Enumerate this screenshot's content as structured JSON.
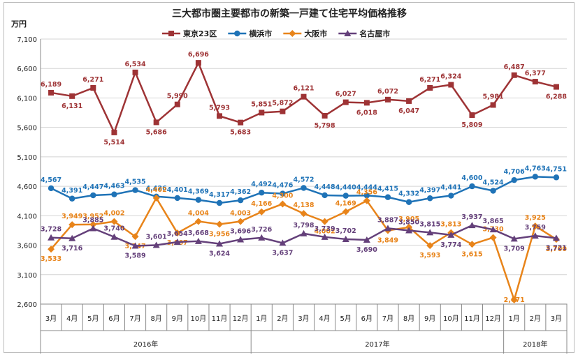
{
  "chart_data": {
    "type": "line",
    "title": "三大都市圏主要都市の新築一戸建て住宅平均価格推移",
    "ylabel": "万円",
    "ylim": [
      2600,
      7100
    ],
    "yticks": [
      2600,
      3100,
      3600,
      4100,
      4600,
      5100,
      5600,
      6100,
      6600,
      7100
    ],
    "ytick_labels": [
      "2,600",
      "3,100",
      "3,600",
      "4,100",
      "4,600",
      "5,100",
      "5,600",
      "6,100",
      "6,600",
      "7,100"
    ],
    "grid": true,
    "legend_position": "top",
    "categories": [
      "3月",
      "4月",
      "5月",
      "6月",
      "7月",
      "8月",
      "9月",
      "10月",
      "11月",
      "12月",
      "1月",
      "2月",
      "3月",
      "4月",
      "5月",
      "6月",
      "7月",
      "8月",
      "9月",
      "10月",
      "11月",
      "12月",
      "1月",
      "2月",
      "3月"
    ],
    "year_groups": [
      {
        "label": "2016年",
        "start": 0,
        "end": 9
      },
      {
        "label": "2017年",
        "start": 10,
        "end": 21
      },
      {
        "label": "2018年",
        "start": 22,
        "end": 24
      }
    ],
    "series": [
      {
        "name": "東京23区",
        "color": "#9e3335",
        "marker": "square",
        "label_pos": "alt",
        "values": [
          6189,
          6131,
          6271,
          5514,
          6534,
          5686,
          5990,
          6696,
          5793,
          5683,
          5851,
          5872,
          6121,
          5798,
          6027,
          6018,
          6072,
          6047,
          6271,
          6324,
          5809,
          5981,
          6487,
          6377,
          6288
        ],
        "labels": [
          "6,189",
          "6,131",
          "6,271",
          "5,514",
          "6,534",
          "5,686",
          "5,990",
          "6,696",
          "5,793",
          "5,683",
          "5,851",
          "5,872",
          "6,121",
          "5,798",
          "6,027",
          "6,018",
          "6,072",
          "6,047",
          "6,271",
          "6,324",
          "5,809",
          "5,981",
          "6,487",
          "6,377",
          "6,288"
        ]
      },
      {
        "name": "横浜市",
        "color": "#1f73b7",
        "marker": "circle",
        "label_pos": "above",
        "values": [
          4567,
          4391,
          4447,
          4463,
          4535,
          4426,
          4401,
          4369,
          4317,
          4362,
          4492,
          4476,
          4572,
          4448,
          4440,
          4444,
          4415,
          4332,
          4397,
          4441,
          4600,
          4524,
          4706,
          4763,
          4751
        ],
        "labels": [
          "4,567",
          "4,391",
          "4,447",
          "4,463",
          "4,535",
          "4,426",
          "4,401",
          "4,369",
          "4,317",
          "4,362",
          "4,492",
          "4,476",
          "4,572",
          "4,448",
          "4,440",
          "4,444",
          "4,415",
          "4,332",
          "4,397",
          "4,441",
          "4,600",
          "4,524",
          "4,706",
          "4,763",
          "4,751"
        ]
      },
      {
        "name": "大阪市",
        "color": "#e8841a",
        "marker": "diamond",
        "label_pos": "alt",
        "values": [
          3533,
          3949,
          3952,
          4002,
          3747,
          4402,
          3807,
          4004,
          3956,
          4003,
          4166,
          4300,
          4138,
          4002,
          4169,
          4356,
          3849,
          3905,
          3593,
          3813,
          3615,
          3730,
          2671,
          3925,
          3700
        ],
        "labels": [
          "3,533",
          "3,949",
          "3,952",
          "4,002",
          "3,747",
          "4,402",
          "3,807",
          "4,004",
          "3,956",
          "4,003",
          "4,166",
          "4,300",
          "4,138",
          "4,002",
          "4,169",
          "4,356",
          "3,849",
          "3,905",
          "3,593",
          "3,813",
          "3,615",
          "3,730",
          "2,671",
          "3,925",
          "3,700"
        ]
      },
      {
        "name": "名古屋市",
        "color": "#64407a",
        "marker": "triangle",
        "label_pos": "alt",
        "values": [
          3728,
          3716,
          3885,
          3740,
          3589,
          3601,
          3654,
          3668,
          3624,
          3696,
          3726,
          3637,
          3798,
          3739,
          3702,
          3690,
          3887,
          3850,
          3815,
          3774,
          3937,
          3865,
          3709,
          3759,
          3721
        ],
        "labels": [
          "3,728",
          "3,716",
          "3,885",
          "3,740",
          "3,589",
          "3,601",
          "3,654",
          "3,668",
          "3,624",
          "3,696",
          "3,726",
          "3,637",
          "3,798",
          "3,739",
          "3,702",
          "3,690",
          "3,887",
          "3,850",
          "3,815",
          "3,774",
          "3,937",
          "3,865",
          "3,709",
          "3,759",
          "3,721"
        ]
      }
    ]
  }
}
